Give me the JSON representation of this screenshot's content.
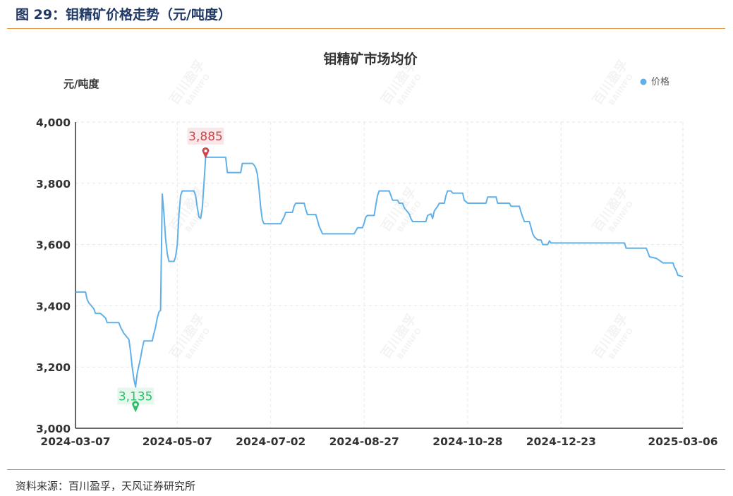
{
  "figure": {
    "title": "图 29：钼精矿价格走势（元/吨度）",
    "source": "资料来源：百川盈孚，天风证券研究所"
  },
  "watermark": {
    "text": "百川盈孚",
    "sub": "BAIINFO"
  },
  "colors": {
    "line": "#62b0e8",
    "rule": "#e8923a",
    "max": "#d0454a",
    "min": "#2ebf6a"
  },
  "chart_data": {
    "type": "line",
    "title": "钼精矿市场均价",
    "ylabel": "元/吨度",
    "xlabel": "",
    "legend": "价格",
    "legend_position": "top-right",
    "ylim": [
      3000,
      4000
    ],
    "yticks": [
      "3,000",
      "3,200",
      "3,400",
      "3,600",
      "3,800",
      "4,000"
    ],
    "yticks_values": [
      3000,
      3200,
      3400,
      3600,
      3800,
      4000
    ],
    "xticks": [
      "2024-03-07",
      "2024-05-07",
      "2024-07-02",
      "2024-08-27",
      "2024-10-28",
      "2024-12-23",
      "2025-03-06"
    ],
    "xticks_dates": [
      "2024-03-07",
      "2024-05-07",
      "2024-07-02",
      "2024-08-27",
      "2024-10-28",
      "2024-12-23",
      "2025-03-06"
    ],
    "grid": true,
    "max_label": "3,885",
    "min_label": "3,135",
    "max_value": 3885,
    "min_value": 3135,
    "series": [
      {
        "name": "价格",
        "points": [
          [
            "2024-03-07",
            3445
          ],
          [
            "2024-03-13",
            3445
          ],
          [
            "2024-03-14",
            3420
          ],
          [
            "2024-03-15",
            3410
          ],
          [
            "2024-03-18",
            3390
          ],
          [
            "2024-03-19",
            3375
          ],
          [
            "2024-03-22",
            3375
          ],
          [
            "2024-03-25",
            3360
          ],
          [
            "2024-03-26",
            3345
          ],
          [
            "2024-03-29",
            3345
          ],
          [
            "2024-04-02",
            3345
          ],
          [
            "2024-04-03",
            3330
          ],
          [
            "2024-04-05",
            3310
          ],
          [
            "2024-04-08",
            3290
          ],
          [
            "2024-04-09",
            3250
          ],
          [
            "2024-04-10",
            3200
          ],
          [
            "2024-04-11",
            3160
          ],
          [
            "2024-04-12",
            3135
          ],
          [
            "2024-04-13",
            3180
          ],
          [
            "2024-04-15",
            3230
          ],
          [
            "2024-04-16",
            3260
          ],
          [
            "2024-04-17",
            3285
          ],
          [
            "2024-04-22",
            3285
          ],
          [
            "2024-04-23",
            3310
          ],
          [
            "2024-04-24",
            3330
          ],
          [
            "2024-04-25",
            3360
          ],
          [
            "2024-04-26",
            3380
          ],
          [
            "2024-04-27",
            3385
          ],
          [
            "2024-04-28",
            3765
          ],
          [
            "2024-04-29",
            3700
          ],
          [
            "2024-04-30",
            3620
          ],
          [
            "2024-05-01",
            3570
          ],
          [
            "2024-05-02",
            3545
          ],
          [
            "2024-05-05",
            3545
          ],
          [
            "2024-05-06",
            3560
          ],
          [
            "2024-05-07",
            3600
          ],
          [
            "2024-05-08",
            3700
          ],
          [
            "2024-05-09",
            3760
          ],
          [
            "2024-05-10",
            3775
          ],
          [
            "2024-05-17",
            3775
          ],
          [
            "2024-05-18",
            3760
          ],
          [
            "2024-05-19",
            3720
          ],
          [
            "2024-05-20",
            3690
          ],
          [
            "2024-05-21",
            3685
          ],
          [
            "2024-05-22",
            3720
          ],
          [
            "2024-05-23",
            3800
          ],
          [
            "2024-05-24",
            3885
          ],
          [
            "2024-06-05",
            3885
          ],
          [
            "2024-06-06",
            3835
          ],
          [
            "2024-06-14",
            3835
          ],
          [
            "2024-06-15",
            3865
          ],
          [
            "2024-06-21",
            3865
          ],
          [
            "2024-06-22",
            3860
          ],
          [
            "2024-06-23",
            3850
          ],
          [
            "2024-06-24",
            3830
          ],
          [
            "2024-06-25",
            3780
          ],
          [
            "2024-06-26",
            3720
          ],
          [
            "2024-06-27",
            3680
          ],
          [
            "2024-06-28",
            3668
          ],
          [
            "2024-07-08",
            3668
          ],
          [
            "2024-07-09",
            3680
          ],
          [
            "2024-07-10",
            3690
          ],
          [
            "2024-07-11",
            3705
          ],
          [
            "2024-07-15",
            3705
          ],
          [
            "2024-07-16",
            3725
          ],
          [
            "2024-07-17",
            3735
          ],
          [
            "2024-07-22",
            3735
          ],
          [
            "2024-07-23",
            3715
          ],
          [
            "2024-07-24",
            3698
          ],
          [
            "2024-07-29",
            3698
          ],
          [
            "2024-07-30",
            3680
          ],
          [
            "2024-07-31",
            3660
          ],
          [
            "2024-08-01",
            3648
          ],
          [
            "2024-08-02",
            3635
          ],
          [
            "2024-08-21",
            3635
          ],
          [
            "2024-08-22",
            3645
          ],
          [
            "2024-08-23",
            3655
          ],
          [
            "2024-08-26",
            3655
          ],
          [
            "2024-08-27",
            3670
          ],
          [
            "2024-08-28",
            3690
          ],
          [
            "2024-08-29",
            3695
          ],
          [
            "2024-09-02",
            3695
          ],
          [
            "2024-09-03",
            3730
          ],
          [
            "2024-09-04",
            3760
          ],
          [
            "2024-09-05",
            3775
          ],
          [
            "2024-09-11",
            3775
          ],
          [
            "2024-09-12",
            3760
          ],
          [
            "2024-09-13",
            3745
          ],
          [
            "2024-09-16",
            3745
          ],
          [
            "2024-09-17",
            3735
          ],
          [
            "2024-09-19",
            3735
          ],
          [
            "2024-09-20",
            3720
          ],
          [
            "2024-09-23",
            3700
          ],
          [
            "2024-09-24",
            3685
          ],
          [
            "2024-09-25",
            3675
          ],
          [
            "2024-10-03",
            3675
          ],
          [
            "2024-10-04",
            3695
          ],
          [
            "2024-10-06",
            3700
          ],
          [
            "2024-10-07",
            3685
          ],
          [
            "2024-10-08",
            3710
          ],
          [
            "2024-10-10",
            3725
          ],
          [
            "2024-10-11",
            3735
          ],
          [
            "2024-10-14",
            3735
          ],
          [
            "2024-10-15",
            3760
          ],
          [
            "2024-10-16",
            3775
          ],
          [
            "2024-10-18",
            3775
          ],
          [
            "2024-10-19",
            3768
          ],
          [
            "2024-10-25",
            3768
          ],
          [
            "2024-10-26",
            3745
          ],
          [
            "2024-10-28",
            3735
          ],
          [
            "2024-11-08",
            3735
          ],
          [
            "2024-11-09",
            3755
          ],
          [
            "2024-11-14",
            3755
          ],
          [
            "2024-11-15",
            3735
          ],
          [
            "2024-11-22",
            3735
          ],
          [
            "2024-11-23",
            3725
          ],
          [
            "2024-11-28",
            3725
          ],
          [
            "2024-11-29",
            3705
          ],
          [
            "2024-11-30",
            3690
          ],
          [
            "2024-12-01",
            3675
          ],
          [
            "2024-12-04",
            3675
          ],
          [
            "2024-12-05",
            3655
          ],
          [
            "2024-12-06",
            3635
          ],
          [
            "2024-12-07",
            3625
          ],
          [
            "2024-12-09",
            3615
          ],
          [
            "2024-12-11",
            3615
          ],
          [
            "2024-12-12",
            3600
          ],
          [
            "2024-12-15",
            3600
          ],
          [
            "2024-12-16",
            3612
          ],
          [
            "2024-12-17",
            3605
          ],
          [
            "2025-01-30",
            3605
          ],
          [
            "2025-01-31",
            3588
          ],
          [
            "2025-02-12",
            3588
          ],
          [
            "2025-02-13",
            3575
          ],
          [
            "2025-02-14",
            3560
          ],
          [
            "2025-02-18",
            3555
          ],
          [
            "2025-02-20",
            3548
          ],
          [
            "2025-02-22",
            3540
          ],
          [
            "2025-02-28",
            3540
          ],
          [
            "2025-03-01",
            3525
          ],
          [
            "2025-03-02",
            3515
          ],
          [
            "2025-03-03",
            3500
          ],
          [
            "2025-03-06",
            3495
          ]
        ]
      }
    ]
  }
}
